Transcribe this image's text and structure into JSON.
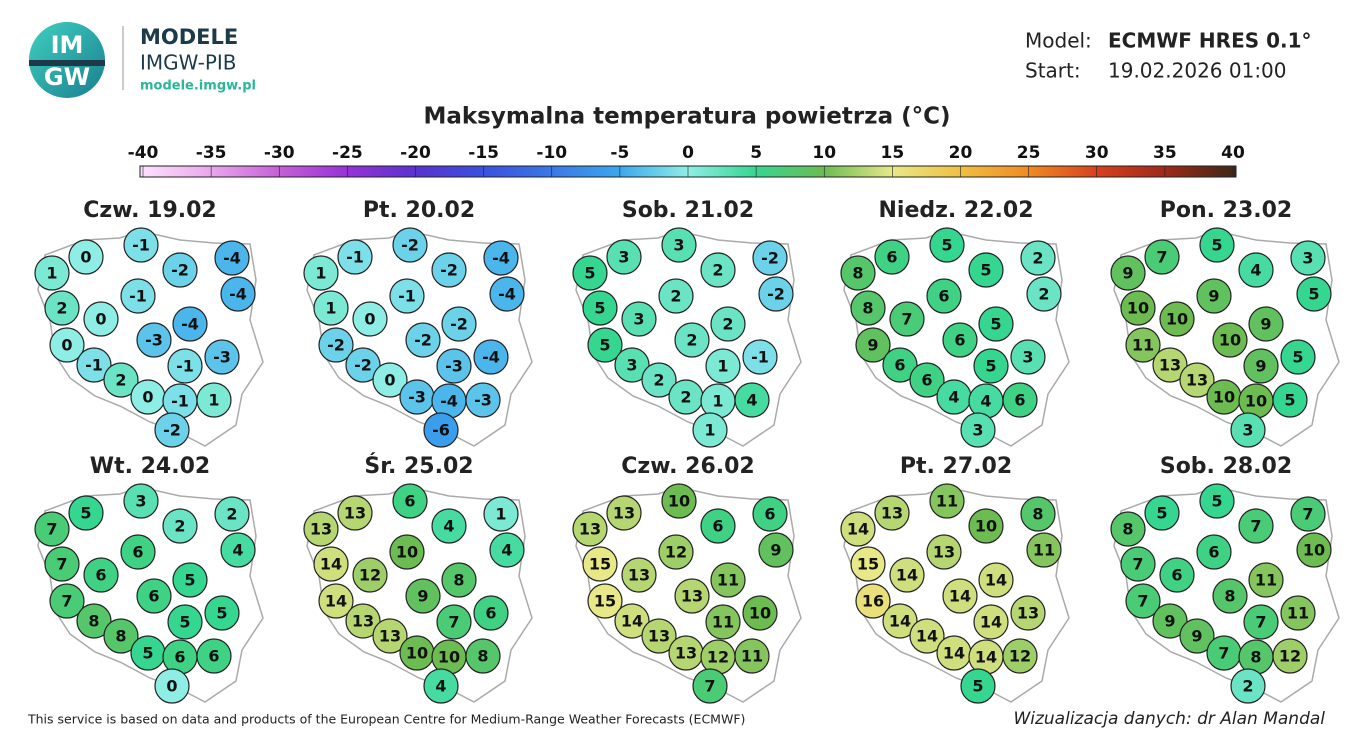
{
  "header": {
    "logo": [
      "IM",
      "GW"
    ],
    "brand": "MODELE",
    "subtitle": "IMGW-PIB",
    "url": "modele.imgw.pl",
    "model_label": "Model:",
    "model_value": "ECMWF HRES 0.1°",
    "start_label": "Start:",
    "start_value": "19.02.2026 01:00"
  },
  "title": "Maksymalna temperatura powietrza (°C)",
  "colorbar": {
    "ticks": [
      -40,
      -35,
      -30,
      -25,
      -20,
      -15,
      -10,
      -5,
      0,
      5,
      10,
      15,
      20,
      25,
      30,
      35,
      40
    ],
    "colors": [
      "#fde0fd",
      "#e9a6ec",
      "#c65fd8",
      "#9632d8",
      "#5a32d0",
      "#3a50e0",
      "#3a78e8",
      "#3aa8ee",
      "#8eeee6",
      "#34d690",
      "#6cbc52",
      "#e8e888",
      "#f0c040",
      "#f08a20",
      "#d84020",
      "#a02818",
      "#402818"
    ]
  },
  "maps": [
    {
      "title": "Czw. 19.02",
      "values": [
        0,
        -1,
        -4,
        1,
        -2,
        -4,
        2,
        0,
        -1,
        -4,
        0,
        -3,
        -1,
        -3,
        -1,
        2,
        0,
        -1,
        1,
        -2
      ]
    },
    {
      "title": "Pt. 20.02",
      "values": [
        -1,
        -2,
        -4,
        1,
        -2,
        -4,
        1,
        0,
        -1,
        -2,
        -2,
        -2,
        -2,
        -4,
        -3,
        0,
        -3,
        -4,
        -3,
        -6
      ]
    },
    {
      "title": "Sob. 21.02",
      "values": [
        3,
        3,
        -2,
        5,
        2,
        -2,
        5,
        3,
        2,
        2,
        5,
        2,
        3,
        -1,
        1,
        2,
        2,
        1,
        4,
        1
      ]
    },
    {
      "title": "Niedz. 22.02",
      "values": [
        6,
        5,
        2,
        8,
        5,
        2,
        8,
        7,
        6,
        5,
        9,
        6,
        6,
        3,
        5,
        6,
        4,
        4,
        6,
        3
      ]
    },
    {
      "title": "Pon. 23.02",
      "values": [
        7,
        5,
        3,
        9,
        4,
        5,
        10,
        10,
        9,
        9,
        11,
        10,
        13,
        5,
        9,
        13,
        10,
        10,
        5,
        3
      ]
    },
    {
      "title": "Wt. 24.02",
      "values": [
        5,
        3,
        2,
        7,
        2,
        4,
        7,
        6,
        6,
        5,
        7,
        6,
        8,
        5,
        5,
        8,
        5,
        6,
        6,
        0
      ]
    },
    {
      "title": "Śr. 25.02",
      "values": [
        13,
        6,
        1,
        13,
        4,
        4,
        14,
        12,
        10,
        8,
        14,
        9,
        13,
        6,
        7,
        13,
        10,
        10,
        8,
        4
      ]
    },
    {
      "title": "Czw. 26.02",
      "values": [
        13,
        10,
        6,
        13,
        6,
        9,
        15,
        13,
        12,
        11,
        15,
        13,
        14,
        10,
        11,
        13,
        13,
        12,
        11,
        7
      ]
    },
    {
      "title": "Pt. 27.02",
      "values": [
        13,
        11,
        8,
        14,
        10,
        11,
        15,
        14,
        13,
        14,
        16,
        14,
        14,
        13,
        14,
        14,
        14,
        14,
        12,
        5
      ]
    },
    {
      "title": "Sob. 28.02",
      "values": [
        5,
        5,
        7,
        8,
        7,
        10,
        7,
        6,
        6,
        11,
        7,
        8,
        9,
        11,
        7,
        9,
        7,
        8,
        12,
        2
      ]
    }
  ],
  "footer": {
    "source": "This service is based on data and products of the European Centre for Medium-Range Weather Forecasts (ECMWF)",
    "credit": "Wizualizacja danych: dr Alan Mandal"
  }
}
